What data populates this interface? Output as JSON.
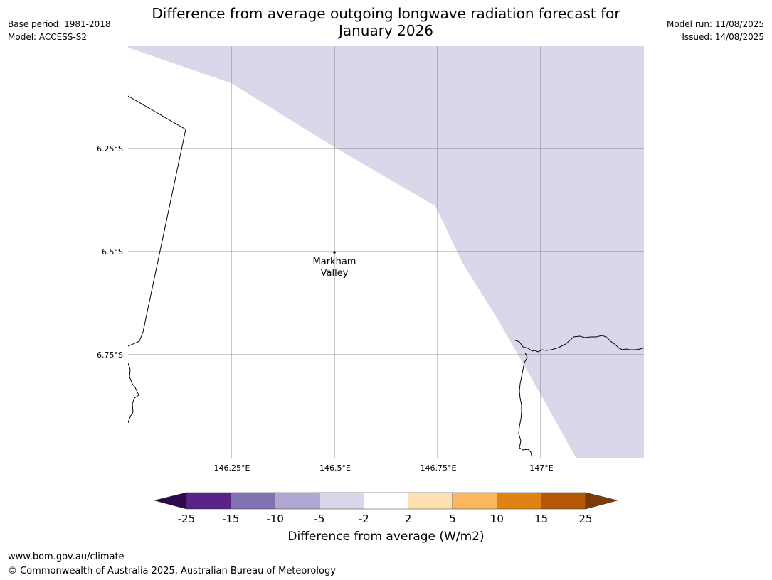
{
  "title_line1": "Difference from average outgoing longwave radiation forecast for",
  "title_line2": "January 2026",
  "meta_left": {
    "base_period": "Base period: 1981-2018",
    "model": "Model: ACCESS-S2"
  },
  "meta_right": {
    "model_run": "Model run: 11/08/2025",
    "issued": "Issued: 14/08/2025"
  },
  "map": {
    "lat_labels": [
      "6.25°S",
      "6.5°S",
      "6.75°S"
    ],
    "lon_labels": [
      "146.25°E",
      "146.5°E",
      "146.75°E",
      "147°E"
    ],
    "place": {
      "name_line1": "Markham",
      "name_line2": "Valley"
    },
    "shade_color": "#d8d8ea",
    "shaded_category": "-5 to -2"
  },
  "colorbar": {
    "title": "Difference from average (W/m2)",
    "ticks": [
      "-25",
      "-15",
      "-10",
      "-5",
      "-2",
      "2",
      "5",
      "10",
      "15",
      "25"
    ],
    "extend_low_color": "#2e0a4f",
    "extend_high_color": "#7a3a0a",
    "colors": [
      "#5a2389",
      "#8272b0",
      "#b0a8d2",
      "#d8d8ea",
      "#ffffff",
      "#fde0b2",
      "#fbb660",
      "#e08214",
      "#b35806"
    ]
  },
  "footer": {
    "url": "www.bom.gov.au/climate",
    "copyright": "© Commonwealth of Australia 2025, Australian Bureau of Meteorology"
  }
}
